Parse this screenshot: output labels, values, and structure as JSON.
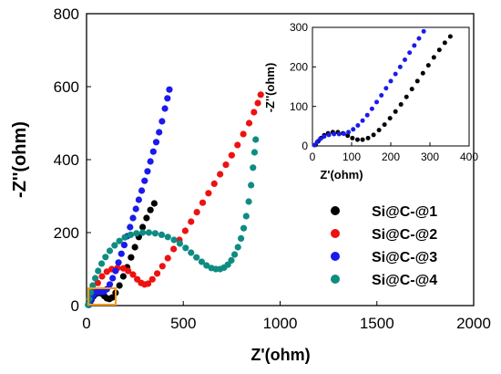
{
  "chart_data": [
    {
      "type": "scatter",
      "title": "",
      "xlabel": "Z'(ohm)",
      "ylabel": "-Z''(ohm)",
      "xlim": [
        0,
        2000
      ],
      "ylim": [
        0,
        800
      ],
      "xticks": [
        "0",
        "500",
        "1000",
        "1500",
        "2000"
      ],
      "yticks": [
        "0",
        "200",
        "400",
        "600",
        "800"
      ],
      "legend_position": "right",
      "annotation": "orange box marking the zoomed region near the origin",
      "series": [
        {
          "name": "Si@C-@1",
          "color": "#000000",
          "points": [
            [
              12,
              2
            ],
            [
              18,
              8
            ],
            [
              25,
              16
            ],
            [
              35,
              25
            ],
            [
              48,
              32
            ],
            [
              62,
              35
            ],
            [
              78,
              33
            ],
            [
              92,
              26
            ],
            [
              105,
              20
            ],
            [
              118,
              18
            ],
            [
              132,
              22
            ],
            [
              150,
              35
            ],
            [
              170,
              55
            ],
            [
              190,
              80
            ],
            [
              210,
              105
            ],
            [
              230,
              132
            ],
            [
              250,
              160
            ],
            [
              270,
              188
            ],
            [
              290,
              215
            ],
            [
              310,
              240
            ],
            [
              330,
              262
            ],
            [
              350,
              280
            ]
          ]
        },
        {
          "name": "Si@C-@2",
          "color": "#ee1111",
          "points": [
            [
              15,
              5
            ],
            [
              25,
              22
            ],
            [
              40,
              42
            ],
            [
              58,
              62
            ],
            [
              80,
              80
            ],
            [
              105,
              93
            ],
            [
              130,
              100
            ],
            [
              160,
              103
            ],
            [
              190,
              102
            ],
            [
              215,
              95
            ],
            [
              240,
              85
            ],
            [
              262,
              72
            ],
            [
              282,
              62
            ],
            [
              300,
              58
            ],
            [
              318,
              60
            ],
            [
              340,
              72
            ],
            [
              365,
              88
            ],
            [
              392,
              108
            ],
            [
              420,
              130
            ],
            [
              450,
              155
            ],
            [
              480,
              180
            ],
            [
              510,
              205
            ],
            [
              540,
              230
            ],
            [
              570,
              256
            ],
            [
              600,
              282
            ],
            [
              630,
              308
            ],
            [
              660,
              334
            ],
            [
              690,
              360
            ],
            [
              720,
              386
            ],
            [
              750,
              412
            ],
            [
              780,
              440
            ],
            [
              810,
              470
            ],
            [
              840,
              500
            ],
            [
              865,
              530
            ],
            [
              885,
              555
            ],
            [
              900,
              578
            ]
          ]
        },
        {
          "name": "Si@C-@3",
          "color": "#1a1aee",
          "points": [
            [
              10,
              2
            ],
            [
              18,
              10
            ],
            [
              26,
              20
            ],
            [
              36,
              30
            ],
            [
              48,
              36
            ],
            [
              62,
              38
            ],
            [
              76,
              37
            ],
            [
              90,
              38
            ],
            [
              105,
              45
            ],
            [
              120,
              58
            ],
            [
              135,
              75
            ],
            [
              150,
              95
            ],
            [
              165,
              118
            ],
            [
              180,
              142
            ],
            [
              195,
              166
            ],
            [
              210,
              190
            ],
            [
              225,
              215
            ],
            [
              240,
              240
            ],
            [
              255,
              265
            ],
            [
              270,
              290
            ],
            [
              285,
              315
            ],
            [
              300,
              342
            ],
            [
              315,
              368
            ],
            [
              330,
              395
            ],
            [
              345,
              422
            ],
            [
              360,
              448
            ],
            [
              375,
              475
            ],
            [
              390,
              505
            ],
            [
              405,
              540
            ],
            [
              418,
              568
            ],
            [
              428,
              592
            ]
          ]
        },
        {
          "name": "Si@C-@4",
          "color": "#0e8c82",
          "points": [
            [
              8,
              2
            ],
            [
              14,
              18
            ],
            [
              22,
              36
            ],
            [
              32,
              55
            ],
            [
              45,
              75
            ],
            [
              60,
              95
            ],
            [
              78,
              115
            ],
            [
              98,
              133
            ],
            [
              120,
              150
            ],
            [
              145,
              165
            ],
            [
              170,
              177
            ],
            [
              198,
              187
            ],
            [
              228,
              194
            ],
            [
              258,
              198
            ],
            [
              290,
              200
            ],
            [
              322,
              200
            ],
            [
              355,
              198
            ],
            [
              388,
              194
            ],
            [
              420,
              188
            ],
            [
              452,
              180
            ],
            [
              482,
              170
            ],
            [
              512,
              158
            ],
            [
              540,
              145
            ],
            [
              568,
              132
            ],
            [
              595,
              120
            ],
            [
              620,
              110
            ],
            [
              645,
              103
            ],
            [
              668,
              100
            ],
            [
              690,
              100
            ],
            [
              710,
              104
            ],
            [
              730,
              112
            ],
            [
              748,
              124
            ],
            [
              765,
              140
            ],
            [
              782,
              160
            ],
            [
              798,
              184
            ],
            [
              812,
              212
            ],
            [
              825,
              245
            ],
            [
              838,
              285
            ],
            [
              850,
              330
            ],
            [
              860,
              378
            ],
            [
              868,
              420
            ],
            [
              874,
              455
            ]
          ]
        }
      ]
    },
    {
      "type": "scatter",
      "title": "",
      "xlabel": "Z'(ohm)",
      "ylabel": "-Z''(ohm)",
      "xlim": [
        0,
        400
      ],
      "ylim": [
        0,
        300
      ],
      "xticks": [
        "0",
        "100",
        "200",
        "300",
        "400"
      ],
      "yticks": [
        "0",
        "100",
        "200",
        "300"
      ],
      "series": [
        {
          "name": "Si@C-@1",
          "color": "#000000",
          "points": [
            [
              8,
              3
            ],
            [
              15,
              12
            ],
            [
              22,
              20
            ],
            [
              30,
              27
            ],
            [
              40,
              32
            ],
            [
              52,
              35
            ],
            [
              65,
              35
            ],
            [
              78,
              32
            ],
            [
              90,
              26
            ],
            [
              102,
              20
            ],
            [
              115,
              16
            ],
            [
              128,
              16
            ],
            [
              142,
              20
            ],
            [
              156,
              28
            ],
            [
              170,
              40
            ],
            [
              184,
              54
            ],
            [
              198,
              70
            ],
            [
              212,
              87
            ],
            [
              226,
              105
            ],
            [
              240,
              124
            ],
            [
              254,
              144
            ],
            [
              268,
              164
            ],
            [
              282,
              184
            ],
            [
              296,
              204
            ],
            [
              310,
              224
            ],
            [
              324,
              243
            ],
            [
              338,
              261
            ],
            [
              352,
              277
            ]
          ]
        },
        {
          "name": "Si@C-@3",
          "color": "#1a1aee",
          "points": [
            [
              5,
              2
            ],
            [
              12,
              10
            ],
            [
              20,
              18
            ],
            [
              30,
              24
            ],
            [
              42,
              28
            ],
            [
              55,
              30
            ],
            [
              68,
              30
            ],
            [
              80,
              31
            ],
            [
              92,
              35
            ],
            [
              104,
              42
            ],
            [
              116,
              52
            ],
            [
              128,
              64
            ],
            [
              140,
              78
            ],
            [
              152,
              94
            ],
            [
              164,
              111
            ],
            [
              176,
              128
            ],
            [
              188,
              146
            ],
            [
              200,
              164
            ],
            [
              212,
              182
            ],
            [
              224,
              200
            ],
            [
              236,
              218
            ],
            [
              248,
              236
            ],
            [
              260,
              254
            ],
            [
              272,
              272
            ],
            [
              284,
              290
            ]
          ]
        }
      ]
    }
  ]
}
